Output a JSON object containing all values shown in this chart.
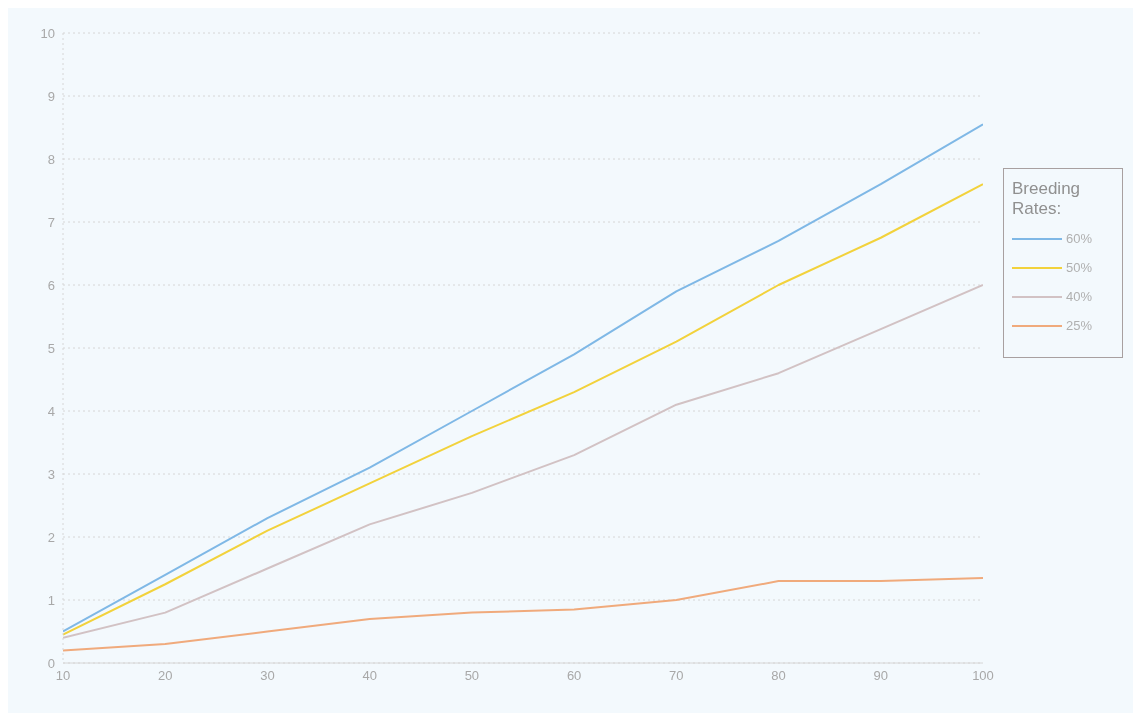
{
  "chart_data": {
    "type": "line",
    "legend_title": "Breeding Rates:",
    "x": [
      10,
      20,
      30,
      40,
      50,
      60,
      70,
      80,
      90,
      100
    ],
    "series": [
      {
        "name": "60%",
        "color": "#7fb8e6",
        "values": [
          0.5,
          1.4,
          2.3,
          3.1,
          4.0,
          4.9,
          5.9,
          6.7,
          7.6,
          8.55
        ]
      },
      {
        "name": "50%",
        "color": "#f2d23c",
        "values": [
          0.45,
          1.25,
          2.1,
          2.85,
          3.6,
          4.3,
          5.1,
          6.0,
          6.75,
          7.6
        ]
      },
      {
        "name": "40%",
        "color": "#d2c2c4",
        "values": [
          0.4,
          0.8,
          1.5,
          2.2,
          2.7,
          3.3,
          4.1,
          4.6,
          5.3,
          6.0
        ]
      },
      {
        "name": "25%",
        "color": "#f0aa7c",
        "values": [
          0.2,
          0.3,
          0.5,
          0.7,
          0.8,
          0.85,
          1.0,
          1.3,
          1.3,
          1.35
        ]
      }
    ],
    "xlim": [
      10,
      100
    ],
    "xticks": [
      10,
      20,
      30,
      40,
      50,
      60,
      70,
      80,
      90,
      100
    ],
    "ylim": [
      0,
      10
    ],
    "yticks": [
      0,
      1,
      2,
      3,
      4,
      5,
      6,
      7,
      8,
      9,
      10
    ],
    "grid": "y",
    "legend": "right",
    "marker": "none",
    "line_style": "solid"
  }
}
